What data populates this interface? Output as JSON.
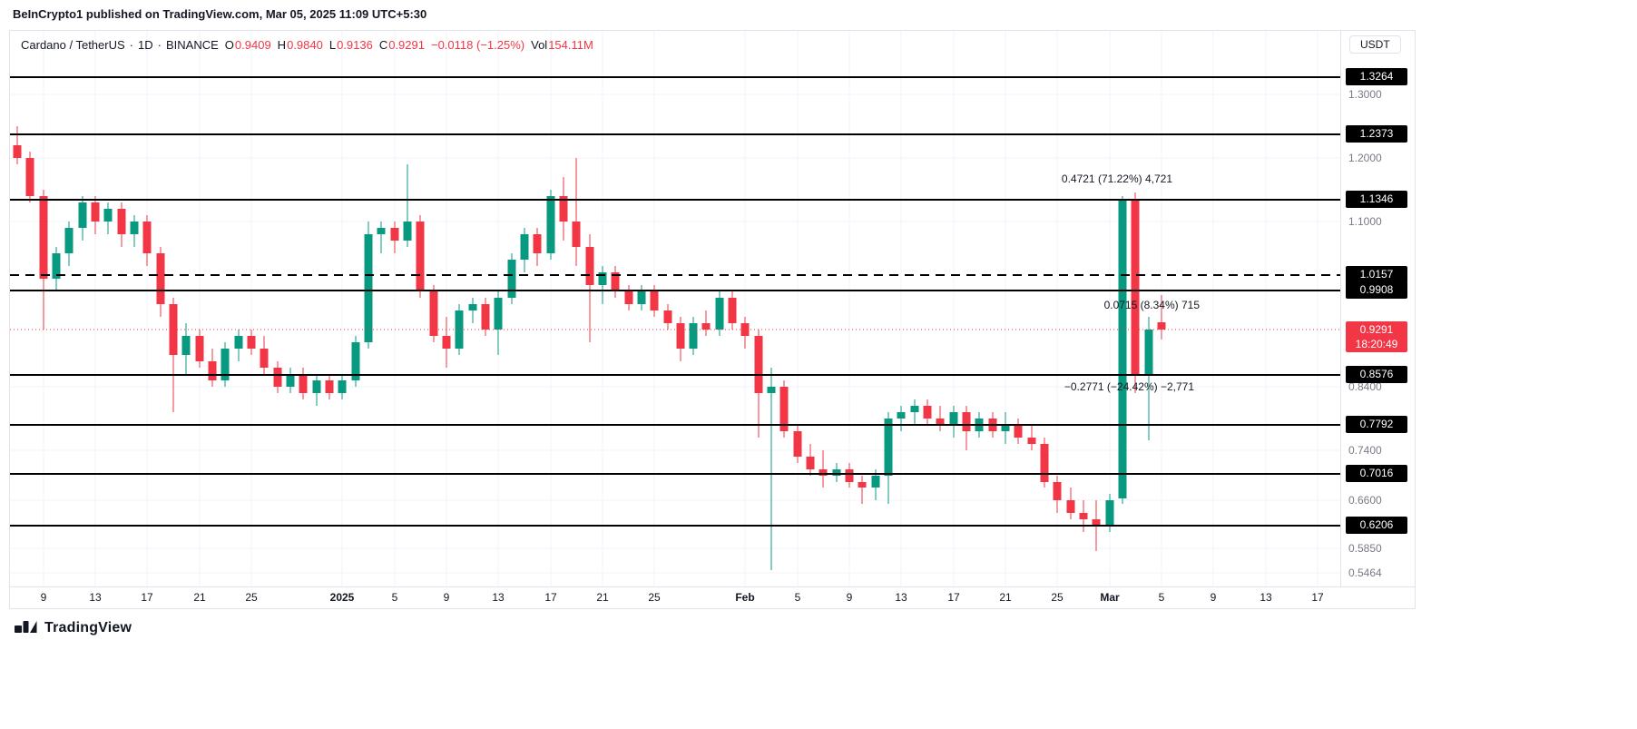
{
  "header": {
    "title": "BeInCrypto1 published on TradingView.com, Mar 05, 2025 11:09 UTC+5:30"
  },
  "legend": {
    "symbol": "Cardano / TetherUS",
    "separator": "·",
    "interval": "1D",
    "exchange": "BINANCE",
    "o_label": "O",
    "o_value": "0.9409",
    "h_label": "H",
    "h_value": "0.9840",
    "l_label": "L",
    "l_value": "0.9136",
    "c_label": "C",
    "c_value": "0.9291",
    "change": "−0.0118 (−1.25%)",
    "vol_label": "Vol",
    "vol_value": "154.11M"
  },
  "price_axis": {
    "currency": "USDT",
    "badges": [
      {
        "text": "1.3264",
        "value": 1.3264
      },
      {
        "text": "1.2373",
        "value": 1.2373
      },
      {
        "text": "1.1346",
        "value": 1.1346
      },
      {
        "text": "1.0157",
        "value": 1.0157
      },
      {
        "text": "0.9908",
        "value": 0.9908
      },
      {
        "text": "0.8576",
        "value": 0.8576
      },
      {
        "text": "0.7792",
        "value": 0.7792
      },
      {
        "text": "0.7016",
        "value": 0.7016
      },
      {
        "text": "0.6206",
        "value": 0.6206
      }
    ],
    "grid_labels": [
      {
        "text": "1.3000",
        "value": 1.3
      },
      {
        "text": "1.2000",
        "value": 1.2
      },
      {
        "text": "1.1000",
        "value": 1.1
      },
      {
        "text": "0.8400",
        "value": 0.84
      },
      {
        "text": "0.7400",
        "value": 0.74
      },
      {
        "text": "0.6600",
        "value": 0.66
      },
      {
        "text": "0.5850",
        "value": 0.585
      },
      {
        "text": "0.5464",
        "value": 0.5464
      }
    ],
    "current": {
      "text": "0.9291",
      "value": 0.9291,
      "countdown": "18:20:49"
    }
  },
  "time_axis": {
    "labels": [
      {
        "text": "9",
        "i": 2
      },
      {
        "text": "13",
        "i": 6
      },
      {
        "text": "17",
        "i": 10
      },
      {
        "text": "21",
        "i": 14
      },
      {
        "text": "25",
        "i": 18
      },
      {
        "text": "2025",
        "i": 25,
        "bold": true
      },
      {
        "text": "5",
        "i": 29
      },
      {
        "text": "9",
        "i": 33
      },
      {
        "text": "13",
        "i": 37
      },
      {
        "text": "17",
        "i": 41
      },
      {
        "text": "21",
        "i": 45
      },
      {
        "text": "25",
        "i": 49
      },
      {
        "text": "Feb",
        "i": 56,
        "bold": true
      },
      {
        "text": "5",
        "i": 60
      },
      {
        "text": "9",
        "i": 64
      },
      {
        "text": "13",
        "i": 68
      },
      {
        "text": "17",
        "i": 72
      },
      {
        "text": "21",
        "i": 76
      },
      {
        "text": "25",
        "i": 80
      },
      {
        "text": "Mar",
        "i": 84,
        "bold": true
      },
      {
        "text": "5",
        "i": 88
      },
      {
        "text": "9",
        "i": 92
      },
      {
        "text": "13",
        "i": 96
      },
      {
        "text": "17",
        "i": 100
      }
    ]
  },
  "annotations": [
    {
      "text": "0.4721 (71.22%) 4,721",
      "price": 1.165,
      "xi": 88.8
    },
    {
      "text": "0.0715 (8.34%) 715",
      "price": 0.967,
      "xi": 90.9
    },
    {
      "text": "−0.2771 (−24.42%) −2,771",
      "price": 0.838,
      "xi": 90.5
    }
  ],
  "footer": {
    "brand": "TradingView"
  },
  "colors": {
    "up": "#089981",
    "down": "#f23645",
    "badge_bg": "#000000",
    "current_badge": "#f23645",
    "grid": "#f0f3fa",
    "level_line": "#000000",
    "text": "#131722",
    "muted": "#787b86",
    "border": "#e0e3eb"
  },
  "chart_data": {
    "type": "candlestick",
    "title": "Cardano / TetherUS · 1D · BINANCE",
    "xlabel": "",
    "ylabel": "Price (USDT)",
    "ylim": [
      0.5464,
      1.3264
    ],
    "legend_position": "none",
    "grid": true,
    "levels_solid": [
      1.3264,
      1.2373,
      1.1346,
      0.9908,
      0.8576,
      0.7792,
      0.7016,
      0.6206
    ],
    "level_dashed": 1.0157,
    "current_price": 0.9291,
    "grid_prices": [
      1.3,
      1.2,
      1.1,
      0.84,
      0.74,
      0.66,
      0.585,
      0.5464
    ],
    "candle_format": [
      "date",
      "open",
      "high",
      "low",
      "close"
    ],
    "candles": [
      [
        "Dec 7",
        1.22,
        1.25,
        1.19,
        1.2
      ],
      [
        "Dec 8",
        1.2,
        1.21,
        1.13,
        1.14
      ],
      [
        "Dec 9",
        1.14,
        1.15,
        0.93,
        1.01
      ],
      [
        "Dec 10",
        1.01,
        1.06,
        0.99,
        1.05
      ],
      [
        "Dec 11",
        1.05,
        1.1,
        1.03,
        1.09
      ],
      [
        "Dec 12",
        1.09,
        1.14,
        1.07,
        1.13
      ],
      [
        "Dec 13",
        1.13,
        1.14,
        1.08,
        1.1
      ],
      [
        "Dec 14",
        1.1,
        1.13,
        1.08,
        1.12
      ],
      [
        "Dec 15",
        1.12,
        1.13,
        1.06,
        1.08
      ],
      [
        "Dec 16",
        1.08,
        1.11,
        1.06,
        1.1
      ],
      [
        "Dec 17",
        1.1,
        1.11,
        1.03,
        1.05
      ],
      [
        "Dec 18",
        1.05,
        1.06,
        0.95,
        0.97
      ],
      [
        "Dec 19",
        0.97,
        0.98,
        0.8,
        0.89
      ],
      [
        "Dec 20",
        0.89,
        0.94,
        0.86,
        0.92
      ],
      [
        "Dec 21",
        0.92,
        0.93,
        0.87,
        0.88
      ],
      [
        "Dec 22",
        0.88,
        0.9,
        0.84,
        0.85
      ],
      [
        "Dec 23",
        0.85,
        0.91,
        0.84,
        0.9
      ],
      [
        "Dec 24",
        0.9,
        0.93,
        0.88,
        0.92
      ],
      [
        "Dec 25",
        0.92,
        0.93,
        0.89,
        0.9
      ],
      [
        "Dec 26",
        0.9,
        0.92,
        0.86,
        0.87
      ],
      [
        "Dec 27",
        0.87,
        0.88,
        0.83,
        0.84
      ],
      [
        "Dec 28",
        0.84,
        0.87,
        0.83,
        0.86
      ],
      [
        "Dec 29",
        0.86,
        0.87,
        0.82,
        0.83
      ],
      [
        "Dec 30",
        0.83,
        0.86,
        0.81,
        0.85
      ],
      [
        "Dec 31",
        0.85,
        0.86,
        0.82,
        0.83
      ],
      [
        "Jan 1",
        0.83,
        0.86,
        0.82,
        0.85
      ],
      [
        "Jan 2",
        0.85,
        0.92,
        0.84,
        0.91
      ],
      [
        "Jan 3",
        0.91,
        1.1,
        0.9,
        1.08
      ],
      [
        "Jan 4",
        1.08,
        1.1,
        1.05,
        1.09
      ],
      [
        "Jan 5",
        1.09,
        1.1,
        1.05,
        1.07
      ],
      [
        "Jan 6",
        1.07,
        1.19,
        1.06,
        1.1
      ],
      [
        "Jan 7",
        1.1,
        1.11,
        0.98,
        0.99
      ],
      [
        "Jan 8",
        0.99,
        1.0,
        0.91,
        0.92
      ],
      [
        "Jan 9",
        0.92,
        0.95,
        0.87,
        0.9
      ],
      [
        "Jan 10",
        0.9,
        0.97,
        0.89,
        0.96
      ],
      [
        "Jan 11",
        0.96,
        0.98,
        0.94,
        0.97
      ],
      [
        "Jan 12",
        0.97,
        0.98,
        0.92,
        0.93
      ],
      [
        "Jan 13",
        0.93,
        0.99,
        0.89,
        0.98
      ],
      [
        "Jan 14",
        0.98,
        1.05,
        0.97,
        1.04
      ],
      [
        "Jan 15",
        1.04,
        1.09,
        1.02,
        1.08
      ],
      [
        "Jan 16",
        1.08,
        1.09,
        1.03,
        1.05
      ],
      [
        "Jan 17",
        1.05,
        1.15,
        1.04,
        1.14
      ],
      [
        "Jan 18",
        1.14,
        1.17,
        1.07,
        1.1
      ],
      [
        "Jan 19",
        1.1,
        1.2,
        1.03,
        1.06
      ],
      [
        "Jan 20",
        1.06,
        1.08,
        0.91,
        1.0
      ],
      [
        "Jan 21",
        1.0,
        1.03,
        0.97,
        1.02
      ],
      [
        "Jan 22",
        1.02,
        1.03,
        0.98,
        0.99
      ],
      [
        "Jan 23",
        0.99,
        1.0,
        0.96,
        0.97
      ],
      [
        "Jan 24",
        0.97,
        1.0,
        0.96,
        0.99
      ],
      [
        "Jan 25",
        0.99,
        1.0,
        0.95,
        0.96
      ],
      [
        "Jan 26",
        0.96,
        0.97,
        0.93,
        0.94
      ],
      [
        "Jan 27",
        0.94,
        0.95,
        0.88,
        0.9
      ],
      [
        "Jan 28",
        0.9,
        0.95,
        0.89,
        0.94
      ],
      [
        "Jan 29",
        0.94,
        0.96,
        0.92,
        0.93
      ],
      [
        "Jan 30",
        0.93,
        0.99,
        0.92,
        0.98
      ],
      [
        "Jan 31",
        0.98,
        0.99,
        0.93,
        0.94
      ],
      [
        "Feb 1",
        0.94,
        0.95,
        0.9,
        0.92
      ],
      [
        "Feb 2",
        0.92,
        0.93,
        0.76,
        0.83
      ],
      [
        "Feb 3",
        0.83,
        0.87,
        0.55,
        0.84
      ],
      [
        "Feb 4",
        0.84,
        0.85,
        0.76,
        0.77
      ],
      [
        "Feb 5",
        0.77,
        0.78,
        0.72,
        0.73
      ],
      [
        "Feb 6",
        0.73,
        0.75,
        0.7,
        0.71
      ],
      [
        "Feb 7",
        0.71,
        0.74,
        0.68,
        0.7
      ],
      [
        "Feb 8",
        0.7,
        0.72,
        0.69,
        0.71
      ],
      [
        "Feb 9",
        0.71,
        0.72,
        0.68,
        0.69
      ],
      [
        "Feb 10",
        0.69,
        0.7,
        0.655,
        0.68
      ],
      [
        "Feb 11",
        0.68,
        0.71,
        0.66,
        0.7
      ],
      [
        "Feb 12",
        0.7,
        0.8,
        0.655,
        0.79
      ],
      [
        "Feb 13",
        0.79,
        0.81,
        0.77,
        0.8
      ],
      [
        "Feb 14",
        0.8,
        0.82,
        0.78,
        0.81
      ],
      [
        "Feb 15",
        0.81,
        0.82,
        0.78,
        0.79
      ],
      [
        "Feb 16",
        0.79,
        0.81,
        0.77,
        0.78
      ],
      [
        "Feb 17",
        0.78,
        0.81,
        0.76,
        0.8
      ],
      [
        "Feb 18",
        0.8,
        0.81,
        0.74,
        0.77
      ],
      [
        "Feb 19",
        0.77,
        0.8,
        0.76,
        0.79
      ],
      [
        "Feb 20",
        0.79,
        0.8,
        0.76,
        0.77
      ],
      [
        "Feb 21",
        0.77,
        0.8,
        0.75,
        0.78
      ],
      [
        "Feb 22",
        0.78,
        0.79,
        0.75,
        0.76
      ],
      [
        "Feb 23",
        0.76,
        0.78,
        0.74,
        0.75
      ],
      [
        "Feb 24",
        0.75,
        0.76,
        0.68,
        0.69
      ],
      [
        "Feb 25",
        0.69,
        0.7,
        0.64,
        0.66
      ],
      [
        "Feb 26",
        0.66,
        0.68,
        0.63,
        0.64
      ],
      [
        "Feb 27",
        0.64,
        0.66,
        0.61,
        0.63
      ],
      [
        "Feb 28",
        0.63,
        0.66,
        0.58,
        0.62
      ],
      [
        "Mar 1",
        0.62,
        0.67,
        0.61,
        0.66
      ],
      [
        "Mar 2",
        0.663,
        1.14,
        0.655,
        1.135
      ],
      [
        "Mar 3",
        1.135,
        1.145,
        0.83,
        0.858
      ],
      [
        "Mar 4",
        0.858,
        0.95,
        0.755,
        0.93
      ],
      [
        "Mar 5",
        0.9409,
        0.984,
        0.9136,
        0.9291
      ]
    ]
  }
}
